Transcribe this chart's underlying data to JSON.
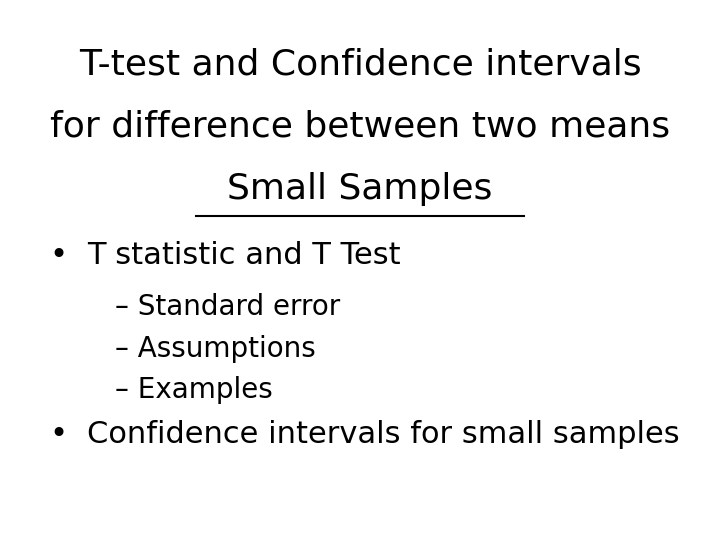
{
  "background_color": "#ffffff",
  "title_line1": "T-test and Confidence intervals",
  "title_line2": "for difference between two means",
  "title_line3": "Small Samples",
  "title_fontsize": 26,
  "title_color": "#000000",
  "bullet1": "T statistic and T Test",
  "bullet1_fontsize": 22,
  "sub_bullets": [
    "Standard error",
    "Assumptions",
    "Examples"
  ],
  "sub_bullet_fontsize": 20,
  "bullet2": "Confidence intervals for small samples",
  "bullet2_fontsize": 22,
  "font_family": "DejaVu Sans"
}
